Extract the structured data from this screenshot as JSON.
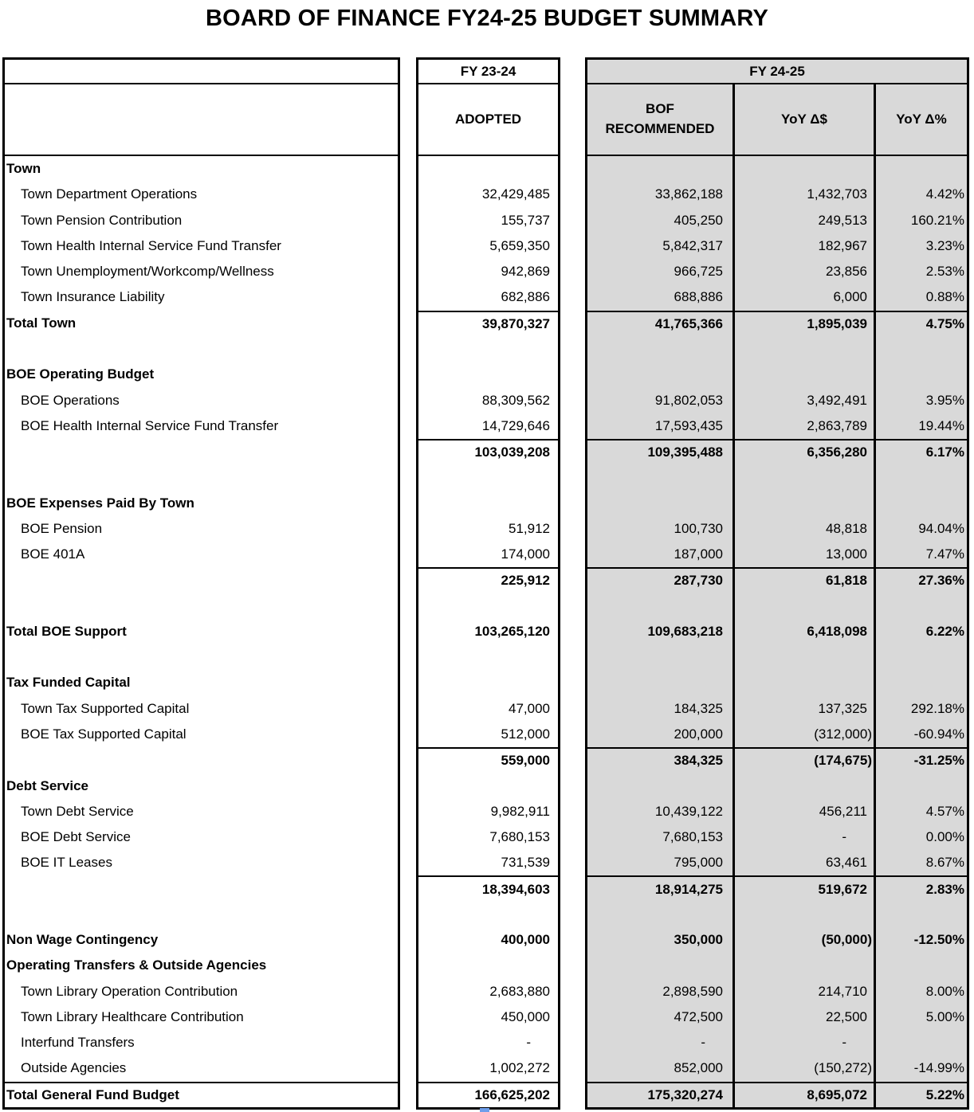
{
  "title": "BOARD OF FINANCE FY24-25 BUDGET SUMMARY",
  "colors": {
    "fy2425_fill": "#d9d9d9",
    "border": "#000000",
    "selection_handle_blue": "#6d9eeb"
  },
  "table": {
    "headers": {
      "fy2324_group": "FY 23-24",
      "fy2425_group": "FY 24-25",
      "adopted": "ADOPTED",
      "bof_recommended": "BOF RECOMMENDED",
      "yoy_dollar": "YoY Δ$",
      "yoy_percent": "YoY Δ%"
    },
    "rows": [
      {
        "style": "section",
        "label": "Town",
        "adopted": "",
        "bof": "",
        "yoy_d": "",
        "yoy_p": ""
      },
      {
        "style": "detail",
        "label": "Town Department Operations",
        "adopted": "32,429,485",
        "bof": "33,862,188",
        "yoy_d": "1,432,703",
        "yoy_p": "4.42%"
      },
      {
        "style": "detail",
        "label": "Town Pension Contribution",
        "adopted": "155,737",
        "bof": "405,250",
        "yoy_d": "249,513",
        "yoy_p": "160.21%"
      },
      {
        "style": "detail",
        "label": "Town Health Internal Service Fund Transfer",
        "adopted": "5,659,350",
        "bof": "5,842,317",
        "yoy_d": "182,967",
        "yoy_p": "3.23%"
      },
      {
        "style": "detail",
        "label": "Town Unemployment/Workcomp/Wellness",
        "adopted": "942,869",
        "bof": "966,725",
        "yoy_d": "23,856",
        "yoy_p": "2.53%"
      },
      {
        "style": "detail",
        "label": "Town Insurance Liability",
        "adopted": "682,886",
        "bof": "688,886",
        "yoy_d": "6,000",
        "yoy_p": "0.88%"
      },
      {
        "style": "total",
        "label": "Total Town",
        "rule_above_values": true,
        "adopted": "39,870,327",
        "bof": "41,765,366",
        "yoy_d": "1,895,039",
        "yoy_p": "4.75%"
      },
      {
        "style": "blank",
        "label": "",
        "adopted": "",
        "bof": "",
        "yoy_d": "",
        "yoy_p": ""
      },
      {
        "style": "section",
        "label": "BOE Operating Budget",
        "adopted": "",
        "bof": "",
        "yoy_d": "",
        "yoy_p": ""
      },
      {
        "style": "detail",
        "label": "BOE Operations",
        "adopted": "88,309,562",
        "bof": "91,802,053",
        "yoy_d": "3,492,491",
        "yoy_p": "3.95%"
      },
      {
        "style": "detail",
        "label": "BOE Health Internal Service Fund Transfer",
        "adopted": "14,729,646",
        "bof": "17,593,435",
        "yoy_d": "2,863,789",
        "yoy_p": "19.44%"
      },
      {
        "style": "subtotal",
        "label": "",
        "rule_above_values": true,
        "adopted": "103,039,208",
        "bof": "109,395,488",
        "yoy_d": "6,356,280",
        "yoy_p": "6.17%"
      },
      {
        "style": "blank",
        "label": "",
        "adopted": "",
        "bof": "",
        "yoy_d": "",
        "yoy_p": ""
      },
      {
        "style": "section",
        "label": "BOE Expenses Paid By Town",
        "adopted": "",
        "bof": "",
        "yoy_d": "",
        "yoy_p": ""
      },
      {
        "style": "detail",
        "label": "BOE Pension",
        "adopted": "51,912",
        "bof": "100,730",
        "yoy_d": "48,818",
        "yoy_p": "94.04%"
      },
      {
        "style": "detail",
        "label": "BOE 401A",
        "adopted": "174,000",
        "bof": "187,000",
        "yoy_d": "13,000",
        "yoy_p": "7.47%"
      },
      {
        "style": "subtotal",
        "label": "",
        "rule_above_values": true,
        "adopted": "225,912",
        "bof": "287,730",
        "yoy_d": "61,818",
        "yoy_p": "27.36%"
      },
      {
        "style": "blank",
        "label": "",
        "adopted": "",
        "bof": "",
        "yoy_d": "",
        "yoy_p": ""
      },
      {
        "style": "total",
        "label": "Total BOE Support",
        "adopted": "103,265,120",
        "bof": "109,683,218",
        "yoy_d": "6,418,098",
        "yoy_p": "6.22%"
      },
      {
        "style": "blank",
        "label": "",
        "adopted": "",
        "bof": "",
        "yoy_d": "",
        "yoy_p": ""
      },
      {
        "style": "section",
        "label": "Tax Funded Capital",
        "adopted": "",
        "bof": "",
        "yoy_d": "",
        "yoy_p": ""
      },
      {
        "style": "detail",
        "label": "Town Tax Supported Capital",
        "adopted": "47,000",
        "bof": "184,325",
        "yoy_d": "137,325",
        "yoy_p": "292.18%"
      },
      {
        "style": "detail",
        "label": "BOE Tax Supported Capital",
        "adopted": "512,000",
        "bof": "200,000",
        "yoy_d": "(312,000)",
        "yoy_p": "-60.94%"
      },
      {
        "style": "subtotal",
        "label": "",
        "rule_above_values": true,
        "adopted": "559,000",
        "bof": "384,325",
        "yoy_d": "(174,675)",
        "yoy_p": "-31.25%"
      },
      {
        "style": "section",
        "label": "Debt Service",
        "adopted": "",
        "bof": "",
        "yoy_d": "",
        "yoy_p": ""
      },
      {
        "style": "detail",
        "label": "Town Debt Service",
        "adopted": "9,982,911",
        "bof": "10,439,122",
        "yoy_d": "456,211",
        "yoy_p": "4.57%"
      },
      {
        "style": "detail",
        "label": "BOE Debt Service",
        "adopted": "7,680,153",
        "bof": "7,680,153",
        "yoy_d": "-",
        "yoy_p": "0.00%"
      },
      {
        "style": "detail",
        "label": "BOE IT Leases",
        "adopted": "731,539",
        "bof": "795,000",
        "yoy_d": "63,461",
        "yoy_p": "8.67%"
      },
      {
        "style": "subtotal",
        "label": "",
        "rule_above_values": true,
        "adopted": "18,394,603",
        "bof": "18,914,275",
        "yoy_d": "519,672",
        "yoy_p": "2.83%"
      },
      {
        "style": "blank",
        "label": "",
        "adopted": "",
        "bof": "",
        "yoy_d": "",
        "yoy_p": ""
      },
      {
        "style": "total",
        "label": "Non Wage Contingency",
        "adopted": "400,000",
        "bof": "350,000",
        "yoy_d": "(50,000)",
        "yoy_p": "-12.50%"
      },
      {
        "style": "section",
        "label": "Operating Transfers & Outside Agencies",
        "adopted": "",
        "bof": "",
        "yoy_d": "",
        "yoy_p": ""
      },
      {
        "style": "detail",
        "label": "Town Library Operation Contribution",
        "adopted": "2,683,880",
        "bof": "2,898,590",
        "yoy_d": "214,710",
        "yoy_p": "8.00%"
      },
      {
        "style": "detail",
        "label": "Town Library Healthcare Contribution",
        "adopted": "450,000",
        "bof": "472,500",
        "yoy_d": "22,500",
        "yoy_p": "5.00%"
      },
      {
        "style": "detail",
        "label": "Interfund Transfers",
        "adopted": "-",
        "bof": "-",
        "yoy_d": "-",
        "yoy_p": ""
      },
      {
        "style": "detail",
        "label": "Outside Agencies",
        "adopted": "1,002,272",
        "bof": "852,000",
        "yoy_d": "(150,272)",
        "yoy_p": "-14.99%"
      },
      {
        "style": "total",
        "label": "Total General Fund Budget",
        "rule_above_values": true,
        "rule_above_label": true,
        "adopted": "166,625,202",
        "bof": "175,320,274",
        "yoy_d": "8,695,072",
        "yoy_p": "5.22%"
      }
    ]
  }
}
